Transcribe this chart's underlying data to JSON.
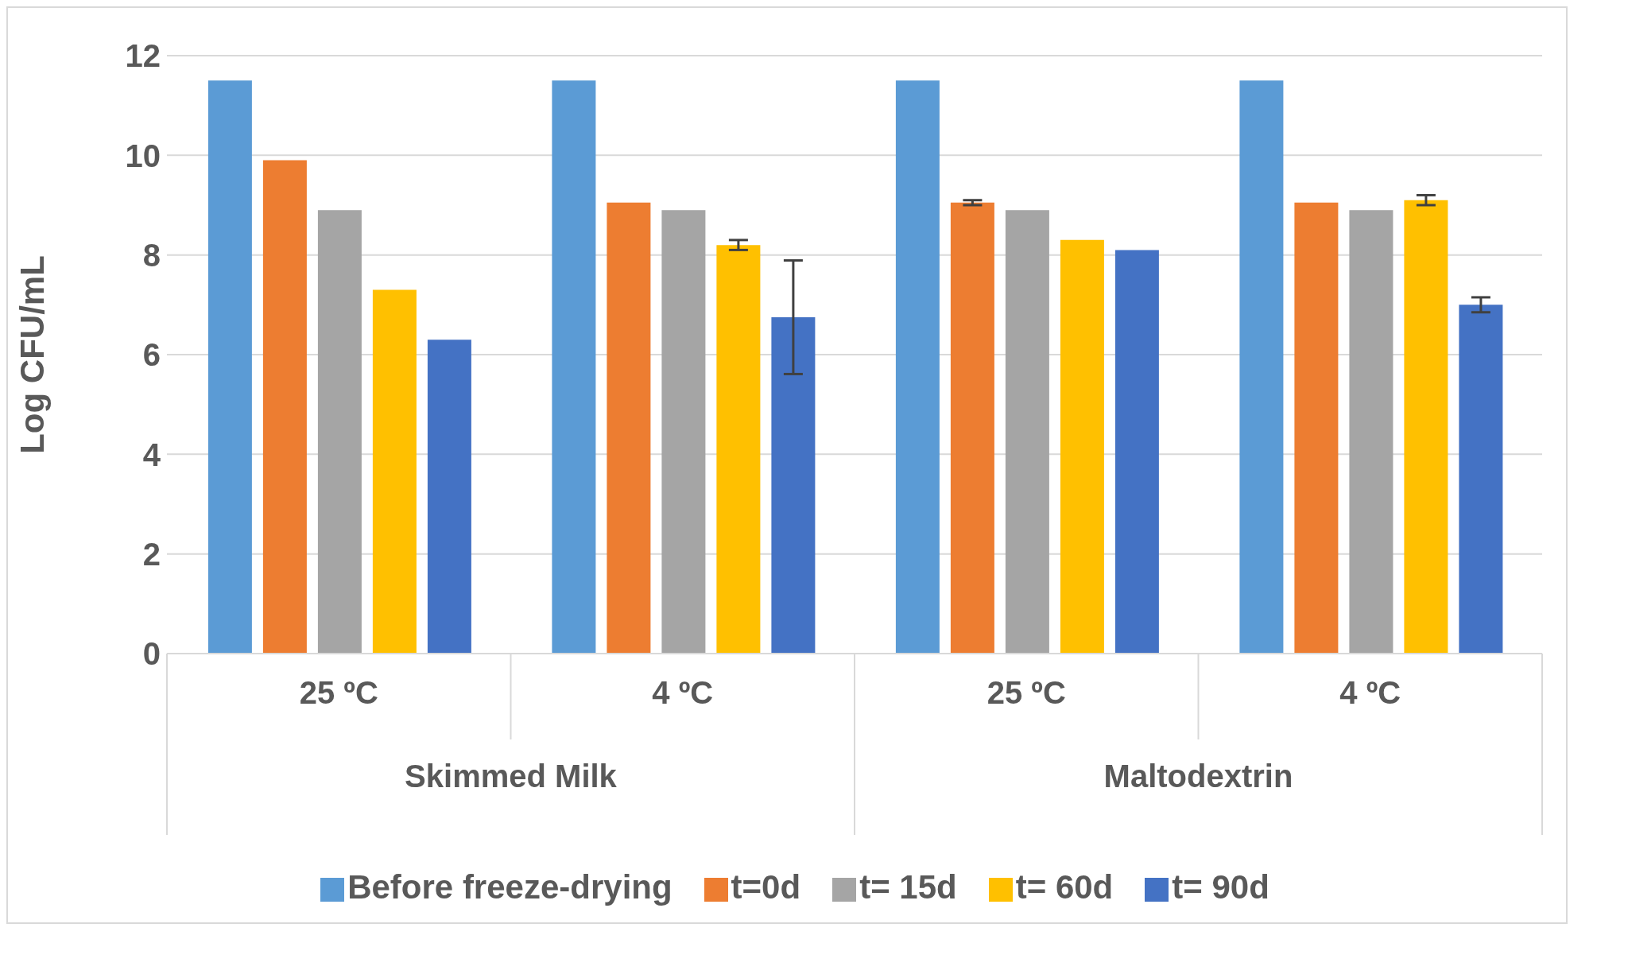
{
  "chart_data": {
    "type": "bar",
    "ylabel": "Log CFU/mL",
    "categories": [
      "25 ºC",
      "4 ºC",
      "25 ºC",
      "4 ºC"
    ],
    "annotations": [
      "Skimmed Milk",
      "Maltodextrin"
    ],
    "series": [
      {
        "name": "Before freeze-drying",
        "color": "#5b9bd5",
        "values": [
          11.5,
          11.5,
          11.5,
          11.5
        ]
      },
      {
        "name": "t=0d",
        "color": "#ed7d31",
        "values": [
          9.9,
          9.05,
          9.05,
          9.05
        ],
        "errors": [
          null,
          null,
          0.05,
          null
        ]
      },
      {
        "name": "t= 15d",
        "color": "#a5a5a5",
        "values": [
          8.9,
          8.9,
          8.9,
          8.9
        ]
      },
      {
        "name": "t= 60d",
        "color": "#ffc000",
        "values": [
          7.3,
          8.2,
          8.3,
          9.1
        ],
        "errors": [
          null,
          0.1,
          null,
          0.1
        ]
      },
      {
        "name": "t= 90d",
        "color": "#4472c4",
        "values": [
          6.3,
          6.75,
          8.1,
          7.0
        ],
        "errors": [
          null,
          1.14,
          null,
          0.15
        ]
      }
    ],
    "ylim": [
      0,
      12
    ],
    "yticks": [
      0,
      2,
      4,
      6,
      8,
      10,
      12
    ],
    "grid": "y",
    "legend": "bottom"
  }
}
